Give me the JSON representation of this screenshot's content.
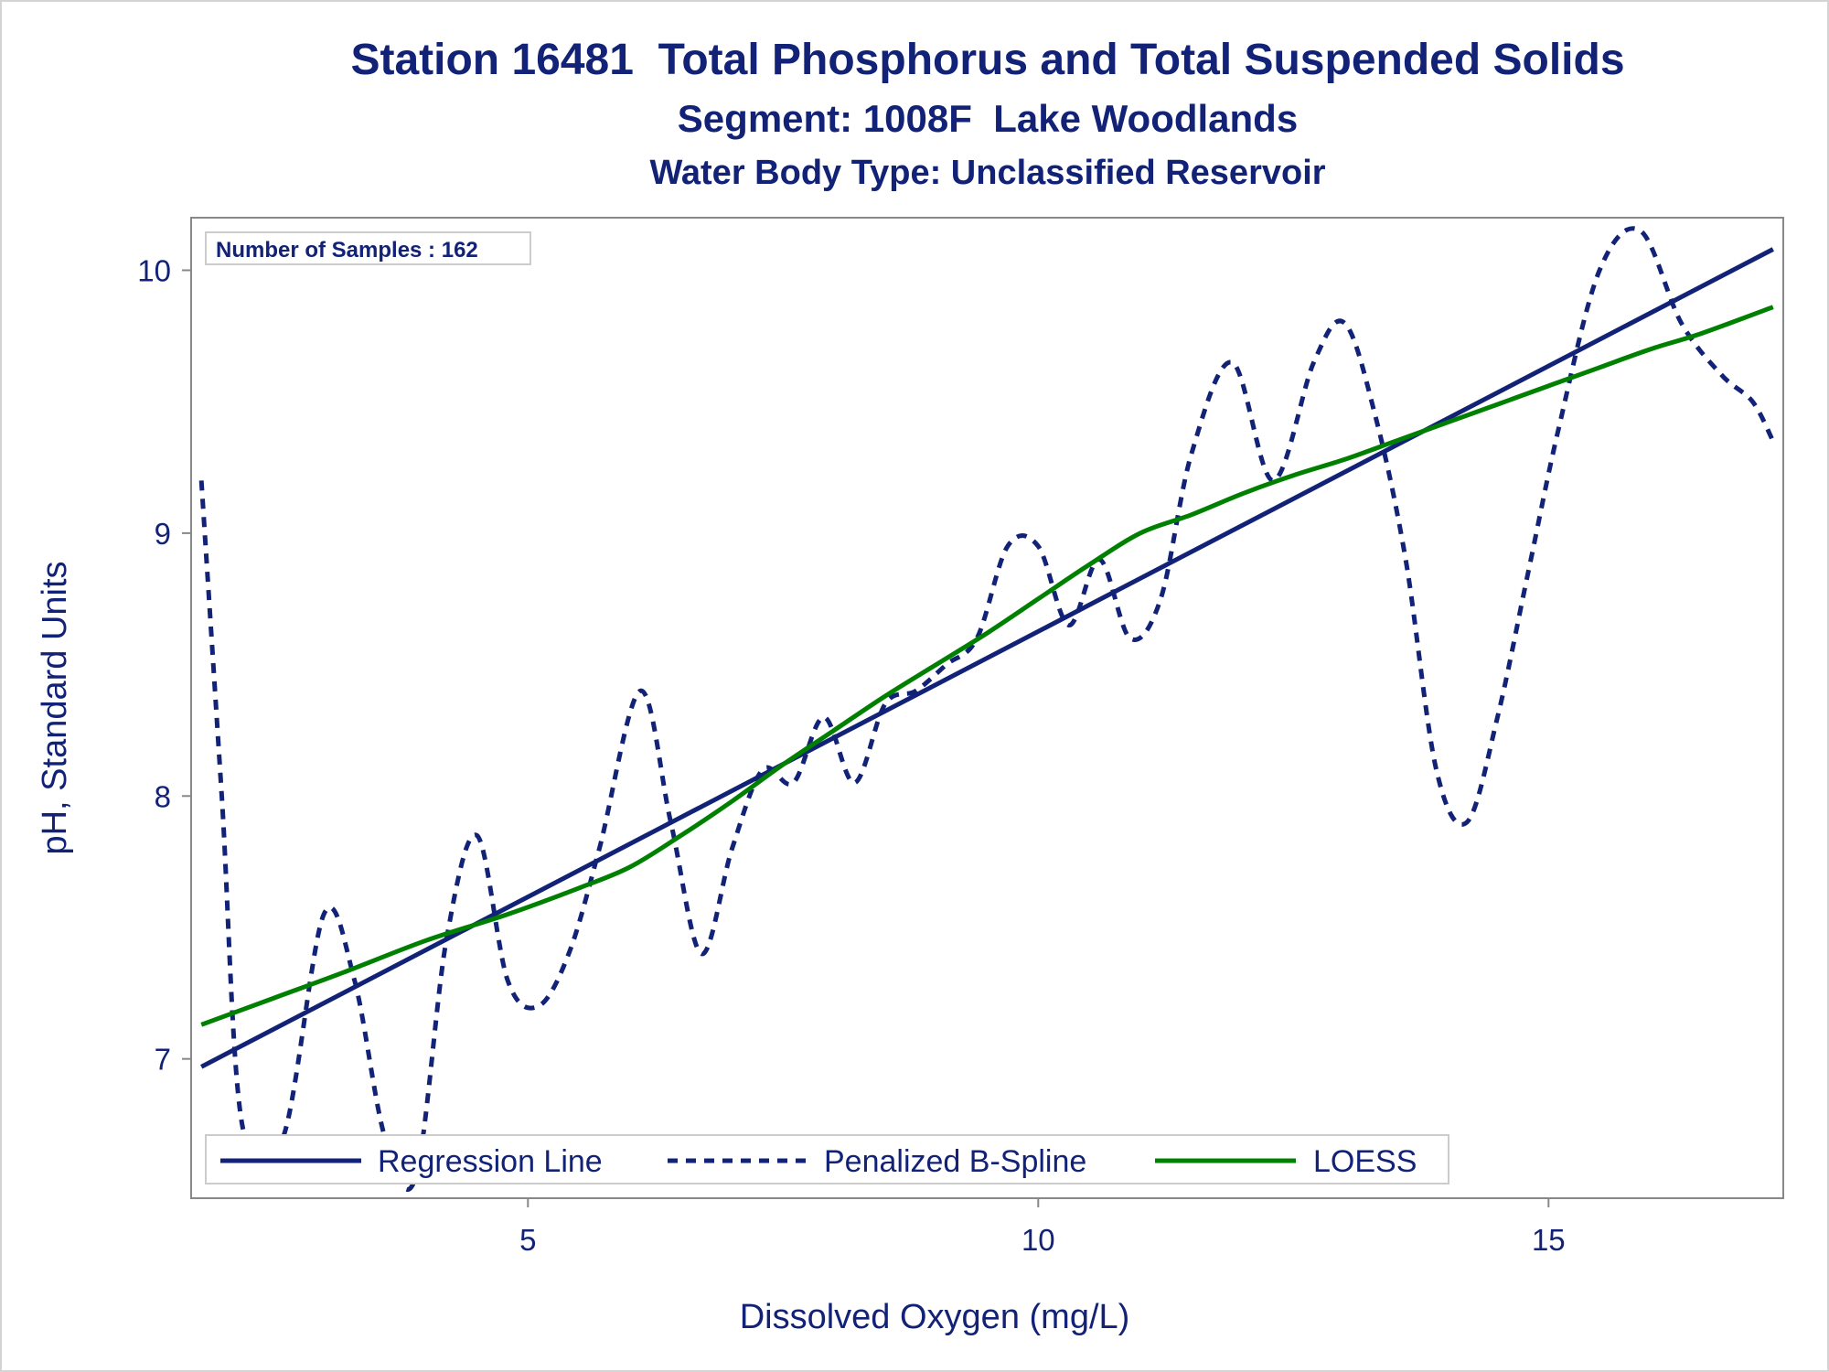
{
  "titles": {
    "line1": "Station 16481  Total Phosphorus and Total Suspended Solids",
    "line2": "Segment: 1008F  Lake Woodlands",
    "line3": "Water Body Type: Unclassified Reservoir"
  },
  "inset": {
    "text": "Number of Samples : 162"
  },
  "colors": {
    "navy": "#112277",
    "green": "#008000",
    "axis": "#888888"
  },
  "chart_data": {
    "type": "line",
    "title": "Station 16481  Total Phosphorus and Total Suspended Solids",
    "xlabel": "Dissolved Oxygen (mg/L)",
    "ylabel": "pH, Standard Units",
    "xlim": [
      1.7,
      17.3
    ],
    "ylim": [
      6.47,
      10.2
    ],
    "x_ticks": [
      5,
      10,
      15
    ],
    "y_ticks": [
      7,
      8,
      9,
      10
    ],
    "grid": false,
    "legend_position": "bottom-inside",
    "series": [
      {
        "name": "Regression Line",
        "style": "solid",
        "color": "#112277",
        "x": [
          1.8,
          17.2
        ],
        "y": [
          6.97,
          10.08
        ]
      },
      {
        "name": "Penalized B-Spline",
        "style": "dashed",
        "color": "#112277",
        "x": [
          1.8,
          2.0,
          2.2,
          2.6,
          3.0,
          3.3,
          3.6,
          3.9,
          4.2,
          4.5,
          4.8,
          5.1,
          5.4,
          5.7,
          6.1,
          6.4,
          6.7,
          7.0,
          7.3,
          7.6,
          7.9,
          8.2,
          8.5,
          8.8,
          9.1,
          9.4,
          9.7,
          10.0,
          10.3,
          10.6,
          10.9,
          11.2,
          11.5,
          11.9,
          12.3,
          12.7,
          13.0,
          13.3,
          13.6,
          13.9,
          14.2,
          14.5,
          14.8,
          15.1,
          15.5,
          15.9,
          16.3,
          16.7,
          17.0,
          17.2
        ],
        "y": [
          9.2,
          8.0,
          6.75,
          6.7,
          7.55,
          7.3,
          6.7,
          6.55,
          7.45,
          7.85,
          7.3,
          7.2,
          7.4,
          7.8,
          8.4,
          7.9,
          7.4,
          7.8,
          8.1,
          8.05,
          8.3,
          8.05,
          8.35,
          8.4,
          8.5,
          8.6,
          8.95,
          8.95,
          8.65,
          8.9,
          8.6,
          8.75,
          9.3,
          9.65,
          9.2,
          9.65,
          9.8,
          9.45,
          8.9,
          8.1,
          7.9,
          8.3,
          8.85,
          9.4,
          10.0,
          10.15,
          9.8,
          9.6,
          9.5,
          9.35
        ]
      },
      {
        "name": "LOESS",
        "style": "solid",
        "color": "#008000",
        "x": [
          1.8,
          2.5,
          3.2,
          4.0,
          4.8,
          5.5,
          6.0,
          6.5,
          7.0,
          7.5,
          8.0,
          8.5,
          9.0,
          9.5,
          10.0,
          10.5,
          11.0,
          11.5,
          12.0,
          12.5,
          13.0,
          13.5,
          14.0,
          14.5,
          15.0,
          15.5,
          16.0,
          16.5,
          17.2
        ],
        "y": [
          7.13,
          7.23,
          7.33,
          7.45,
          7.55,
          7.65,
          7.73,
          7.85,
          7.98,
          8.12,
          8.25,
          8.38,
          8.5,
          8.62,
          8.75,
          8.88,
          9.0,
          9.07,
          9.15,
          9.22,
          9.28,
          9.35,
          9.42,
          9.49,
          9.56,
          9.63,
          9.7,
          9.76,
          9.86
        ]
      }
    ]
  }
}
